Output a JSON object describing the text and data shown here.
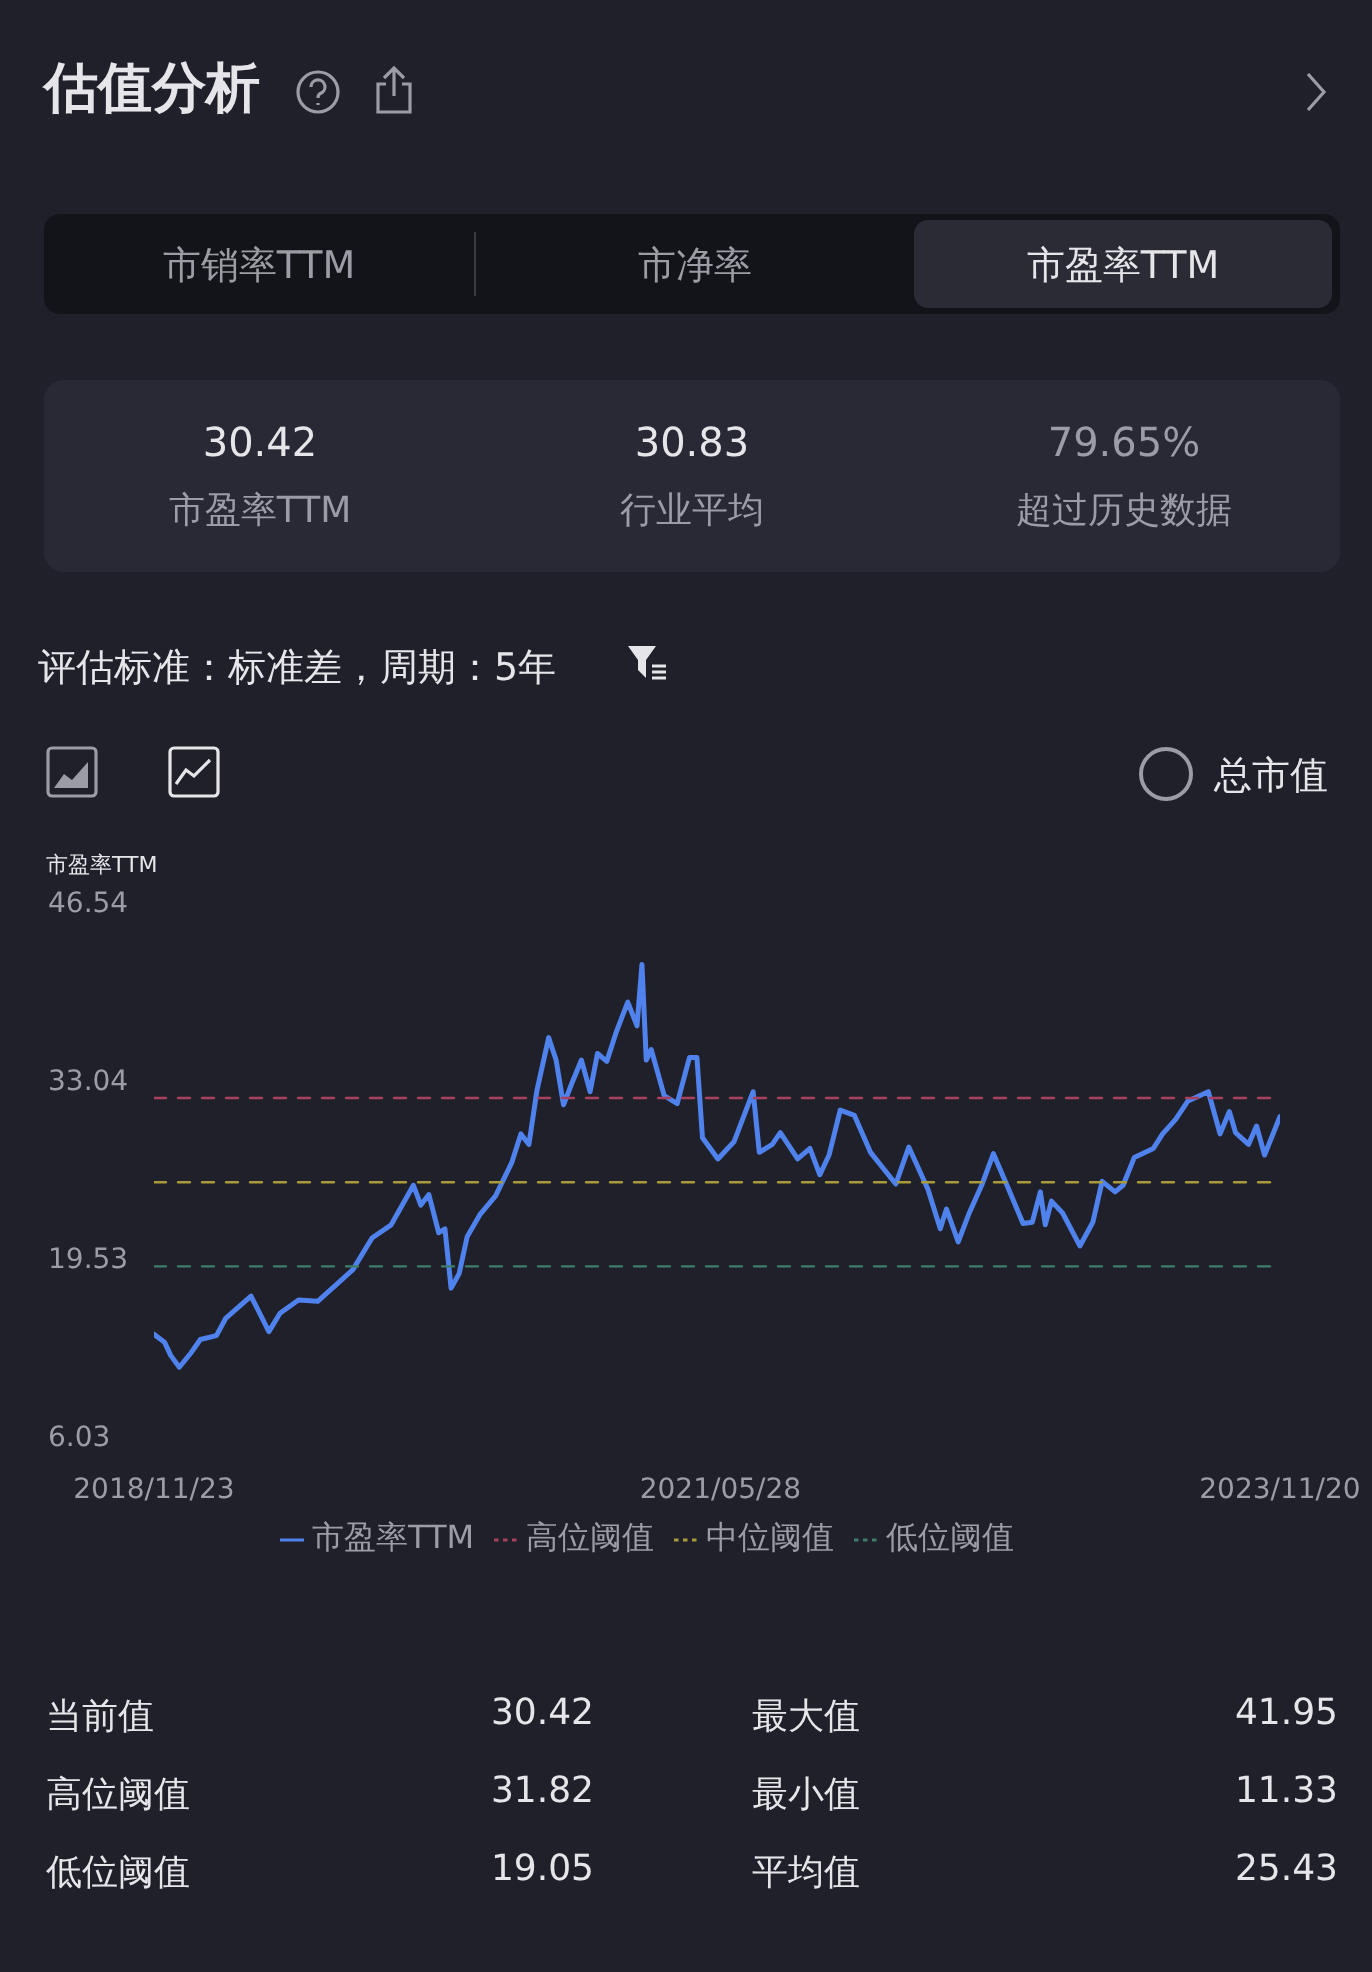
{
  "chart_data": {
    "type": "line",
    "title": "估值分析",
    "ylabel": "市盈率TTM",
    "annotations": [
      "市销率TTM",
      "市净率",
      "市盈率TTM",
      "30.42",
      "市盈率TTM",
      "30.83",
      "行业平均",
      "79.65%",
      "超过历史数据",
      "评估标准：标准差，周期：5年",
      "总市值",
      "当前值",
      "30.42",
      "最大值",
      "41.95",
      "高位阈值",
      "31.82",
      "最小值",
      "11.33",
      "低位阈值",
      "19.05",
      "平均值",
      "25.43"
    ],
    "xlim": [
      "2018-11-23",
      "2023-11-20"
    ],
    "xticks": [
      {
        "value": "2018-11-23",
        "label": "2018/11/23"
      },
      {
        "value": "2021-05-28",
        "label": "2021/05/28"
      },
      {
        "value": "2023-11-20",
        "label": "2023/11/20"
      }
    ],
    "ylim": [
      6.03,
      46.54
    ],
    "yticks": [
      6.03,
      19.53,
      33.04,
      46.54
    ],
    "grid": false,
    "legend": "bottom",
    "marker": "none",
    "series": [
      {
        "name": "市盈率TTM",
        "color": "#4f82ec",
        "line_style": "solid",
        "x": [
          "2018-11-23",
          "2018-12-10",
          "2018-12-20",
          "2019-01-03",
          "2019-01-22",
          "2019-02-06",
          "2019-03-04",
          "2019-03-19",
          "2019-04-29",
          "2019-05-28",
          "2019-06-15",
          "2019-07-15",
          "2019-08-15",
          "2019-09-15",
          "2019-10-11",
          "2019-11-11",
          "2019-12-12",
          "2020-01-17",
          "2020-01-29",
          "2020-02-11",
          "2020-02-27",
          "2020-03-08",
          "2020-03-18",
          "2020-03-31",
          "2020-04-13",
          "2020-05-04",
          "2020-05-29",
          "2020-06-24",
          "2020-07-09",
          "2020-07-22",
          "2020-08-04",
          "2020-08-23",
          "2020-09-04",
          "2020-09-16",
          "2020-09-30",
          "2020-10-15",
          "2020-10-29",
          "2020-11-10",
          "2020-11-25",
          "2020-12-11",
          "2020-12-29",
          "2021-01-13",
          "2021-01-21",
          "2021-01-28",
          "2021-02-05",
          "2021-02-26",
          "2021-03-19",
          "2021-04-08",
          "2021-04-20",
          "2021-04-29",
          "2021-05-24",
          "2021-06-19",
          "2021-07-20",
          "2021-07-30",
          "2021-08-20",
          "2021-09-02",
          "2021-09-30",
          "2021-10-20",
          "2021-11-05",
          "2021-11-20",
          "2021-12-08",
          "2021-12-31",
          "2022-01-26",
          "2022-03-08",
          "2022-03-29",
          "2022-04-29",
          "2022-05-19",
          "2022-05-29",
          "2022-06-17",
          "2022-07-04",
          "2022-07-25",
          "2022-08-13",
          "2022-09-04",
          "2022-09-30",
          "2022-10-15",
          "2022-10-28",
          "2022-11-05",
          "2022-11-15",
          "2022-12-03",
          "2022-12-31",
          "2023-01-21",
          "2023-02-05",
          "2023-02-26",
          "2023-03-11",
          "2023-03-29",
          "2023-04-29",
          "2023-05-14",
          "2023-06-04",
          "2023-06-24",
          "2023-07-27",
          "2023-08-15",
          "2023-08-30",
          "2023-09-09",
          "2023-09-30",
          "2023-10-13",
          "2023-10-26",
          "2023-11-20"
        ],
        "values": [
          13.9,
          13.3,
          12.3,
          11.4,
          12.5,
          13.5,
          13.8,
          15.1,
          16.8,
          14.1,
          15.5,
          16.5,
          16.4,
          17.7,
          18.8,
          21.2,
          22.2,
          25.2,
          23.7,
          24.5,
          21.6,
          21.9,
          17.4,
          18.5,
          21.3,
          23.0,
          24.4,
          26.9,
          29.1,
          28.3,
          32.4,
          36.4,
          34.7,
          31.3,
          33.0,
          34.7,
          32.3,
          35.2,
          34.6,
          36.9,
          39.1,
          37.3,
          41.95,
          34.7,
          35.5,
          32.0,
          31.4,
          34.9,
          34.9,
          28.8,
          27.2,
          28.5,
          32.3,
          27.7,
          28.3,
          29.2,
          27.2,
          28.0,
          26.0,
          27.5,
          30.9,
          30.5,
          27.7,
          25.3,
          28.1,
          24.9,
          21.9,
          23.4,
          20.9,
          23.0,
          25.2,
          27.6,
          25.2,
          22.3,
          22.4,
          24.7,
          22.2,
          24.0,
          23.1,
          20.6,
          22.4,
          25.5,
          24.7,
          25.2,
          27.3,
          28.0,
          29.1,
          30.2,
          31.6,
          32.3,
          29.1,
          30.8,
          29.2,
          28.3,
          29.7,
          27.5,
          30.42
        ]
      },
      {
        "name": "高位阈值",
        "color": "#a8405e",
        "line_style": "dashed",
        "x": [
          "2018-11-23",
          "2023-11-20"
        ],
        "values": [
          31.82,
          31.82
        ]
      },
      {
        "name": "中位阈值",
        "color": "#a89a38",
        "line_style": "dashed",
        "x": [
          "2018-11-23",
          "2023-11-20"
        ],
        "values": [
          25.43,
          25.43
        ]
      },
      {
        "name": "低位阈值",
        "color": "#3d7d6a",
        "line_style": "dashed",
        "x": [
          "2018-11-23",
          "2023-11-20"
        ],
        "values": [
          19.05,
          19.05
        ]
      }
    ]
  }
}
